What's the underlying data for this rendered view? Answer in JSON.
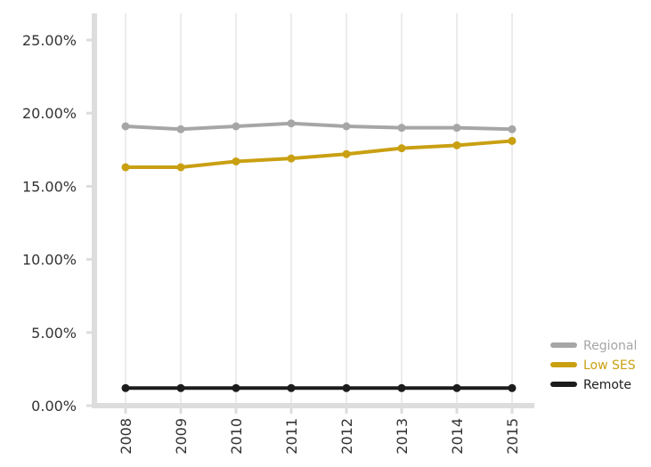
{
  "chart_data": {
    "type": "line",
    "title": "",
    "xlabel": "",
    "ylabel": "",
    "categories": [
      "2008",
      "2009",
      "2010",
      "2011",
      "2012",
      "2013",
      "2014",
      "2015"
    ],
    "ylim": [
      0,
      25
    ],
    "yticks": [
      0,
      5,
      10,
      15,
      20,
      25
    ],
    "ytick_labels": [
      "0.00%",
      "5.00%",
      "10.00%",
      "15.00%",
      "20.00%",
      "25.00%"
    ],
    "grid": "vertical",
    "legend": "bottom-right",
    "series": [
      {
        "name": "Regional",
        "color": "#a6a6a6",
        "values": [
          19.1,
          18.9,
          19.1,
          19.3,
          19.1,
          19.0,
          19.0,
          18.9
        ]
      },
      {
        "name": "Low SES",
        "color": "#c9a012",
        "values": [
          16.3,
          16.3,
          16.7,
          16.9,
          17.2,
          17.6,
          17.8,
          18.1
        ]
      },
      {
        "name": "Remote",
        "color": "#1c1c1c",
        "values": [
          1.2,
          1.2,
          1.2,
          1.2,
          1.2,
          1.2,
          1.2,
          1.2
        ]
      }
    ]
  }
}
